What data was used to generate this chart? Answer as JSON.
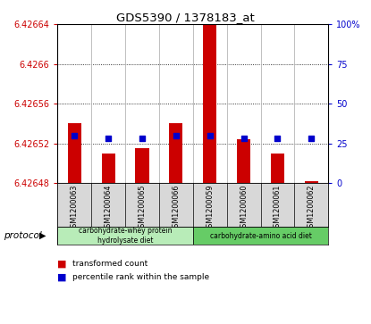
{
  "title": "GDS5390 / 1378183_at",
  "samples": [
    "GSM1200063",
    "GSM1200064",
    "GSM1200065",
    "GSM1200066",
    "GSM1200059",
    "GSM1200060",
    "GSM1200061",
    "GSM1200062"
  ],
  "red_values": [
    6.42654,
    6.42651,
    6.426515,
    6.42654,
    6.42667,
    6.426524,
    6.42651,
    6.426482
  ],
  "blue_pcts": [
    30,
    28,
    28,
    30,
    30,
    28,
    28,
    28
  ],
  "ymin": 6.42648,
  "ymax": 6.42664,
  "yticks": [
    6.42648,
    6.42652,
    6.42656,
    6.4266,
    6.42664
  ],
  "ytick_labels": [
    "6.42648",
    "6.42652",
    "6.42656",
    "6.4266",
    "6.42664"
  ],
  "right_yticks": [
    0,
    25,
    50,
    75,
    100
  ],
  "protocol_groups": [
    {
      "label": "carbohydrate-whey protein\nhydrolysate diet",
      "start": 0,
      "end": 4,
      "color": "#b8ecb8"
    },
    {
      "label": "carbohydrate-amino acid diet",
      "start": 4,
      "end": 8,
      "color": "#66cc66"
    }
  ],
  "bar_color": "#cc0000",
  "blue_marker_color": "#0000cc",
  "label_color_red": "#cc0000",
  "label_color_blue": "#0000cc",
  "legend_red": "transformed count",
  "legend_blue": "percentile rank within the sample",
  "subplot_bg": "#d8d8d8",
  "bar_width": 0.4
}
